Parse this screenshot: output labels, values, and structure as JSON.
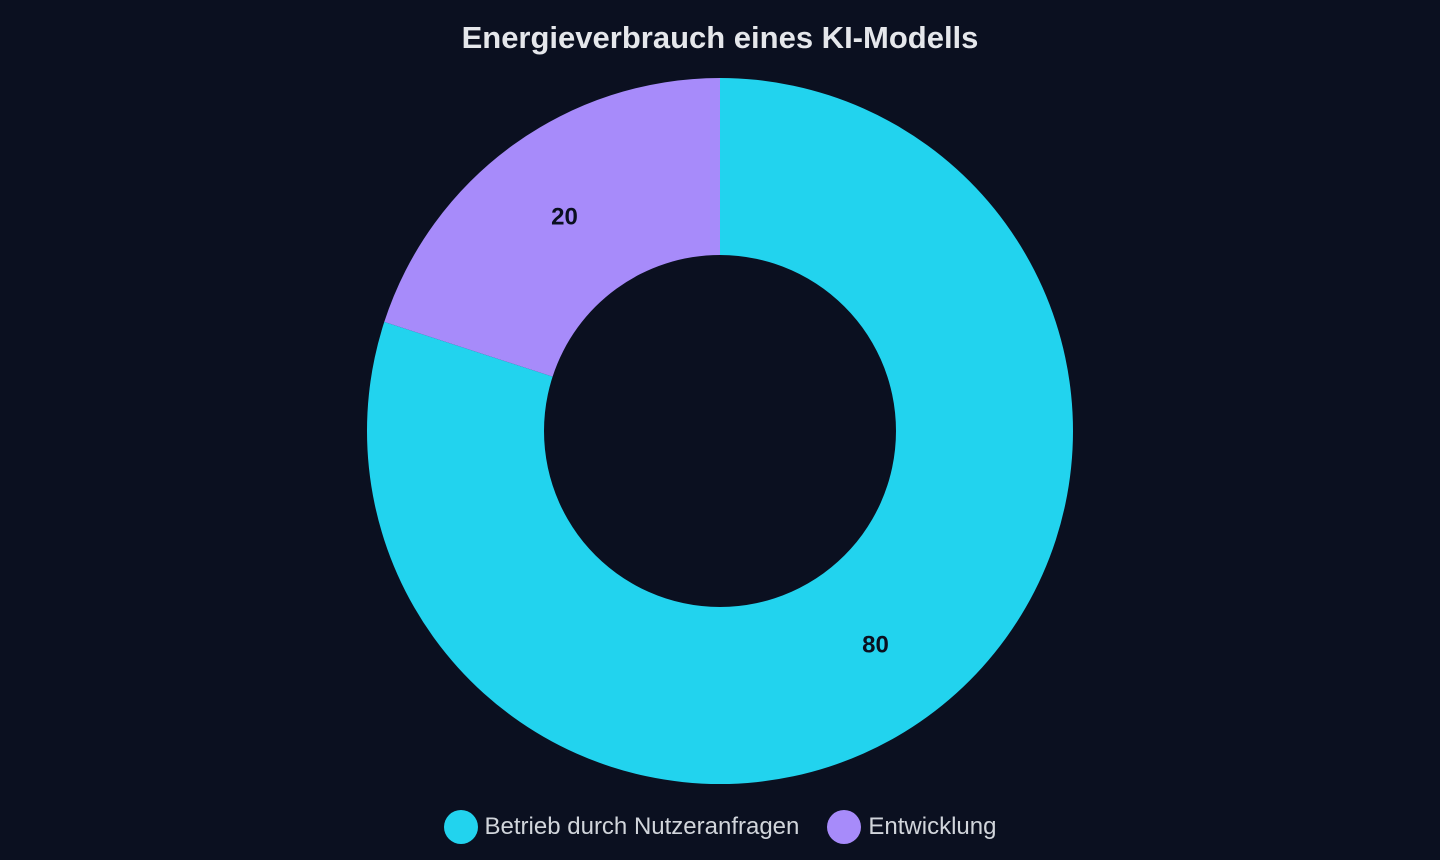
{
  "chart_data": {
    "type": "pie",
    "variant": "donut",
    "title": "Energieverbrauch eines KI-Modells",
    "categories": [
      "Betrieb durch Nutzeranfragen",
      "Entwicklung"
    ],
    "values": [
      80,
      20
    ],
    "colors": [
      "#22d3ee",
      "#a78bfa"
    ],
    "data_labels": [
      "80",
      "20"
    ],
    "legend_position": "bottom-center",
    "background": "#0b1020"
  }
}
